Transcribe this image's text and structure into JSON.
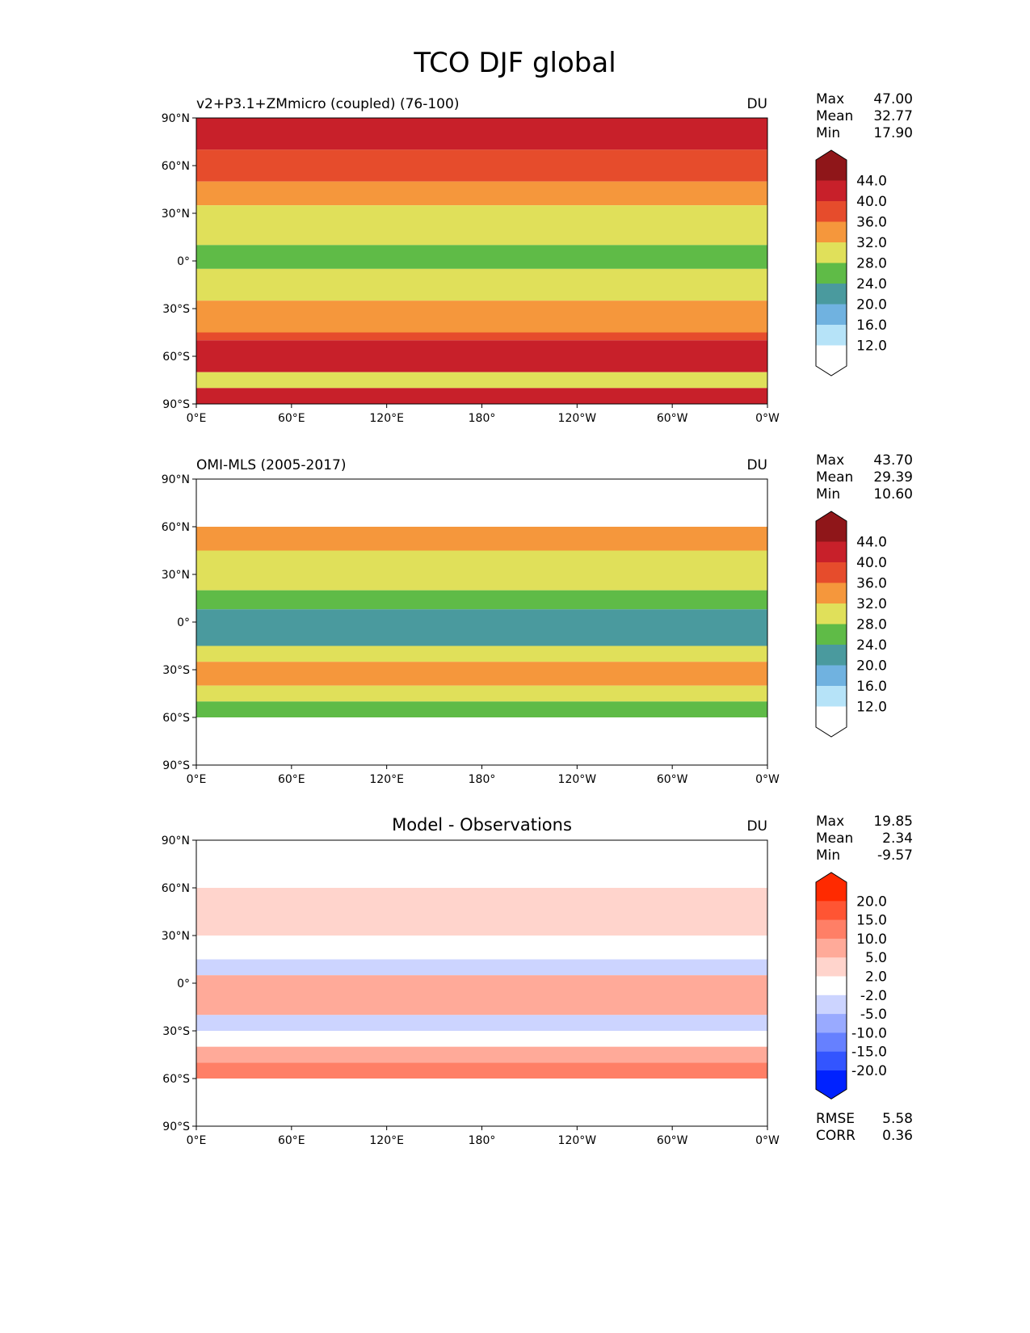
{
  "title": "TCO DJF global",
  "chart_data": [
    {
      "type": "heatmap",
      "title_left": "v2+P3.1+ZMmicro (coupled) (76-100)",
      "title_center": "",
      "units": "DU",
      "stats": {
        "Max": "47.00",
        "Mean": "32.77",
        "Min": "17.90"
      },
      "xticks": [
        "0°E",
        "60°E",
        "120°E",
        "180°",
        "120°W",
        "60°W",
        "0°W"
      ],
      "yticks": [
        "90°N",
        "60°N",
        "30°N",
        "0°",
        "30°S",
        "60°S",
        "90°S"
      ],
      "xlim": [
        0,
        360
      ],
      "ylim": [
        -90,
        90
      ],
      "colorbar": {
        "labels": [
          "44.0",
          "40.0",
          "36.0",
          "32.0",
          "28.0",
          "24.0",
          "20.0",
          "16.0",
          "12.0"
        ],
        "colors": [
          "#8f1619",
          "#c8202a",
          "#e64c2c",
          "#f5973c",
          "#e0e05a",
          "#5fbb47",
          "#4a9a9e",
          "#70b2e0",
          "#b6e3f8",
          "#ffffff"
        ]
      },
      "zonal_bands": [
        {
          "lat": [
            90,
            70
          ],
          "level": 1
        },
        {
          "lat": [
            70,
            50
          ],
          "level": 2
        },
        {
          "lat": [
            50,
            35
          ],
          "level": 3
        },
        {
          "lat": [
            35,
            10
          ],
          "level": 4
        },
        {
          "lat": [
            10,
            -5
          ],
          "level": 5
        },
        {
          "lat": [
            -5,
            -25
          ],
          "level": 4
        },
        {
          "lat": [
            -25,
            -45
          ],
          "level": 3
        },
        {
          "lat": [
            -45,
            -50
          ],
          "level": 2
        },
        {
          "lat": [
            -50,
            -70
          ],
          "level": 1
        },
        {
          "lat": [
            -70,
            -80
          ],
          "level": 4
        },
        {
          "lat": [
            -80,
            -90
          ],
          "level": 1
        }
      ]
    },
    {
      "type": "heatmap",
      "title_left": "OMI-MLS (2005-2017)",
      "title_center": "",
      "units": "DU",
      "stats": {
        "Max": "43.70",
        "Mean": "29.39",
        "Min": "10.60"
      },
      "xticks": [
        "0°E",
        "60°E",
        "120°E",
        "180°",
        "120°W",
        "60°W",
        "0°W"
      ],
      "yticks": [
        "90°N",
        "60°N",
        "30°N",
        "0°",
        "30°S",
        "60°S",
        "90°S"
      ],
      "xlim": [
        0,
        360
      ],
      "ylim": [
        -90,
        90
      ],
      "colorbar": {
        "labels": [
          "44.0",
          "40.0",
          "36.0",
          "32.0",
          "28.0",
          "24.0",
          "20.0",
          "16.0",
          "12.0"
        ],
        "colors": [
          "#8f1619",
          "#c8202a",
          "#e64c2c",
          "#f5973c",
          "#e0e05a",
          "#5fbb47",
          "#4a9a9e",
          "#70b2e0",
          "#b6e3f8",
          "#ffffff"
        ]
      },
      "zonal_bands": [
        {
          "lat": [
            90,
            60
          ],
          "level": 9
        },
        {
          "lat": [
            60,
            45
          ],
          "level": 3
        },
        {
          "lat": [
            45,
            20
          ],
          "level": 4
        },
        {
          "lat": [
            20,
            8
          ],
          "level": 5
        },
        {
          "lat": [
            8,
            -15
          ],
          "level": 6
        },
        {
          "lat": [
            -15,
            -25
          ],
          "level": 4
        },
        {
          "lat": [
            -25,
            -40
          ],
          "level": 3
        },
        {
          "lat": [
            -40,
            -50
          ],
          "level": 4
        },
        {
          "lat": [
            -50,
            -60
          ],
          "level": 5
        },
        {
          "lat": [
            -60,
            -90
          ],
          "level": 9
        }
      ]
    },
    {
      "type": "heatmap",
      "title_left": "",
      "title_center": "Model - Observations",
      "units": "DU",
      "stats": {
        "Max": "19.85",
        "Mean": "2.34",
        "Min": "-9.57"
      },
      "extra_stats": {
        "RMSE": "5.58",
        "CORR": "0.36"
      },
      "xticks": [
        "0°E",
        "60°E",
        "120°E",
        "180°",
        "120°W",
        "60°W",
        "0°W"
      ],
      "yticks": [
        "90°N",
        "60°N",
        "30°N",
        "0°",
        "30°S",
        "60°S",
        "90°S"
      ],
      "xlim": [
        0,
        360
      ],
      "ylim": [
        -90,
        90
      ],
      "colorbar": {
        "labels": [
          "20.0",
          "15.0",
          "10.0",
          "5.0",
          "2.0",
          "-2.0",
          "-5.0",
          "-10.0",
          "-15.0",
          "-20.0"
        ],
        "colors": [
          "#ff2a00",
          "#ff5533",
          "#ff7f66",
          "#ffaa99",
          "#ffd4cc",
          "#ffffff",
          "#ccd4ff",
          "#99aaff",
          "#6680ff",
          "#3355ff",
          "#0022ff"
        ]
      },
      "zonal_bands": [
        {
          "lat": [
            90,
            60
          ],
          "level": 5
        },
        {
          "lat": [
            60,
            30
          ],
          "level": 4
        },
        {
          "lat": [
            30,
            15
          ],
          "level": 5
        },
        {
          "lat": [
            15,
            5
          ],
          "level": 6
        },
        {
          "lat": [
            5,
            -20
          ],
          "level": 3
        },
        {
          "lat": [
            -20,
            -30
          ],
          "level": 6
        },
        {
          "lat": [
            -30,
            -40
          ],
          "level": 5
        },
        {
          "lat": [
            -40,
            -50
          ],
          "level": 3
        },
        {
          "lat": [
            -50,
            -60
          ],
          "level": 2
        },
        {
          "lat": [
            -60,
            -90
          ],
          "level": 5
        }
      ]
    }
  ]
}
